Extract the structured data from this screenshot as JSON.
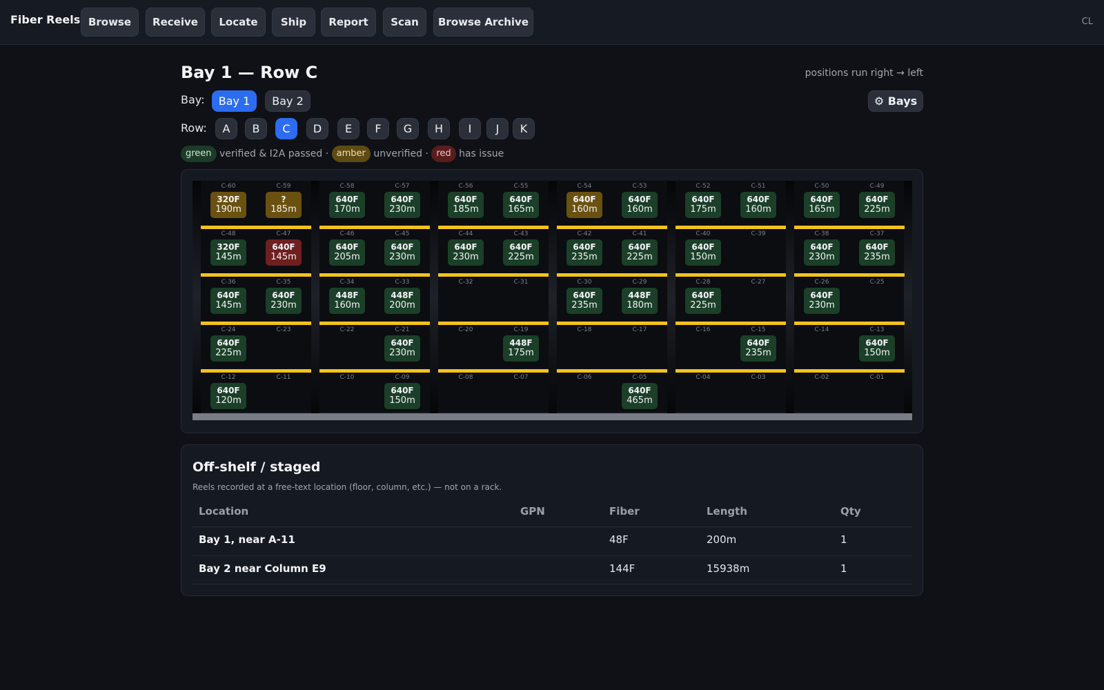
{
  "nav": {
    "brand": "Fiber Reels",
    "buttons": [
      "Browse",
      "Receive",
      "Locate",
      "Ship",
      "Report",
      "Scan",
      "Browse Archive"
    ],
    "user_initials": "CL"
  },
  "header": {
    "title": "Bay 1 — Row C",
    "direction_hint": "positions run right → left",
    "bay_label": "Bay:",
    "bays": [
      "Bay 1",
      "Bay 2"
    ],
    "active_bay": "Bay 1",
    "bays_button": "⚙ Bays",
    "row_label": "Row:",
    "rows": [
      "A",
      "B",
      "C",
      "D",
      "E",
      "F",
      "G",
      "H",
      "I",
      "J",
      "K"
    ],
    "active_row": "C"
  },
  "legend": {
    "green_chip": "green",
    "green_text": "verified & I2A passed ·",
    "amber_chip": "amber",
    "amber_text": "unverified ·",
    "red_chip": "red",
    "red_text": "has issue"
  },
  "colors": {
    "green": "#1b3f28",
    "amber": "#6a5110",
    "red": "#6e1f1f",
    "accent": "#2c6cf0",
    "beam": "#f4c21b"
  },
  "rack": {
    "rows": [
      {
        "slots": [
          {
            "pos": "C-60",
            "reel": {
              "fiber": "320F",
              "length": "190m",
              "status": "amber"
            }
          },
          {
            "pos": "C-59",
            "reel": {
              "fiber": "?",
              "length": "185m",
              "status": "amber"
            }
          },
          {
            "pos": "C-58",
            "reel": {
              "fiber": "640F",
              "length": "170m",
              "status": "green"
            }
          },
          {
            "pos": "C-57",
            "reel": {
              "fiber": "640F",
              "length": "230m",
              "status": "green"
            }
          },
          {
            "pos": "C-56",
            "reel": {
              "fiber": "640F",
              "length": "185m",
              "status": "green"
            }
          },
          {
            "pos": "C-55",
            "reel": {
              "fiber": "640F",
              "length": "165m",
              "status": "green"
            }
          },
          {
            "pos": "C-54",
            "reel": {
              "fiber": "640F",
              "length": "160m",
              "status": "amber"
            }
          },
          {
            "pos": "C-53",
            "reel": {
              "fiber": "640F",
              "length": "160m",
              "status": "green"
            }
          },
          {
            "pos": "C-52",
            "reel": {
              "fiber": "640F",
              "length": "175m",
              "status": "green"
            }
          },
          {
            "pos": "C-51",
            "reel": {
              "fiber": "640F",
              "length": "160m",
              "status": "green"
            }
          },
          {
            "pos": "C-50",
            "reel": {
              "fiber": "640F",
              "length": "165m",
              "status": "green"
            }
          },
          {
            "pos": "C-49",
            "reel": {
              "fiber": "640F",
              "length": "225m",
              "status": "green"
            }
          }
        ]
      },
      {
        "slots": [
          {
            "pos": "C-48",
            "reel": {
              "fiber": "320F",
              "length": "145m",
              "status": "green"
            }
          },
          {
            "pos": "C-47",
            "reel": {
              "fiber": "640F",
              "length": "145m",
              "status": "red"
            }
          },
          {
            "pos": "C-46",
            "reel": {
              "fiber": "640F",
              "length": "205m",
              "status": "green"
            }
          },
          {
            "pos": "C-45",
            "reel": {
              "fiber": "640F",
              "length": "230m",
              "status": "green"
            }
          },
          {
            "pos": "C-44",
            "reel": {
              "fiber": "640F",
              "length": "230m",
              "status": "green"
            }
          },
          {
            "pos": "C-43",
            "reel": {
              "fiber": "640F",
              "length": "225m",
              "status": "green"
            }
          },
          {
            "pos": "C-42",
            "reel": {
              "fiber": "640F",
              "length": "235m",
              "status": "green"
            }
          },
          {
            "pos": "C-41",
            "reel": {
              "fiber": "640F",
              "length": "225m",
              "status": "green"
            }
          },
          {
            "pos": "C-40",
            "reel": {
              "fiber": "640F",
              "length": "150m",
              "status": "green"
            }
          },
          {
            "pos": "C-39",
            "reel": null
          },
          {
            "pos": "C-38",
            "reel": {
              "fiber": "640F",
              "length": "230m",
              "status": "green"
            }
          },
          {
            "pos": "C-37",
            "reel": {
              "fiber": "640F",
              "length": "235m",
              "status": "green"
            }
          }
        ]
      },
      {
        "slots": [
          {
            "pos": "C-36",
            "reel": {
              "fiber": "640F",
              "length": "145m",
              "status": "green"
            }
          },
          {
            "pos": "C-35",
            "reel": {
              "fiber": "640F",
              "length": "230m",
              "status": "green"
            }
          },
          {
            "pos": "C-34",
            "reel": {
              "fiber": "448F",
              "length": "160m",
              "status": "green"
            }
          },
          {
            "pos": "C-33",
            "reel": {
              "fiber": "448F",
              "length": "200m",
              "status": "green"
            }
          },
          {
            "pos": "C-32",
            "reel": null
          },
          {
            "pos": "C-31",
            "reel": null
          },
          {
            "pos": "C-30",
            "reel": {
              "fiber": "640F",
              "length": "235m",
              "status": "green"
            }
          },
          {
            "pos": "C-29",
            "reel": {
              "fiber": "448F",
              "length": "180m",
              "status": "green"
            }
          },
          {
            "pos": "C-28",
            "reel": {
              "fiber": "640F",
              "length": "225m",
              "status": "green"
            }
          },
          {
            "pos": "C-27",
            "reel": null
          },
          {
            "pos": "C-26",
            "reel": {
              "fiber": "640F",
              "length": "230m",
              "status": "green"
            }
          },
          {
            "pos": "C-25",
            "reel": null
          }
        ]
      },
      {
        "slots": [
          {
            "pos": "C-24",
            "reel": {
              "fiber": "640F",
              "length": "225m",
              "status": "green"
            }
          },
          {
            "pos": "C-23",
            "reel": null
          },
          {
            "pos": "C-22",
            "reel": null
          },
          {
            "pos": "C-21",
            "reel": {
              "fiber": "640F",
              "length": "230m",
              "status": "green"
            }
          },
          {
            "pos": "C-20",
            "reel": null
          },
          {
            "pos": "C-19",
            "reel": {
              "fiber": "448F",
              "length": "175m",
              "status": "green"
            }
          },
          {
            "pos": "C-18",
            "reel": null
          },
          {
            "pos": "C-17",
            "reel": null
          },
          {
            "pos": "C-16",
            "reel": null
          },
          {
            "pos": "C-15",
            "reel": {
              "fiber": "640F",
              "length": "235m",
              "status": "green"
            }
          },
          {
            "pos": "C-14",
            "reel": null
          },
          {
            "pos": "C-13",
            "reel": {
              "fiber": "640F",
              "length": "150m",
              "status": "green"
            }
          }
        ]
      },
      {
        "slots": [
          {
            "pos": "C-12",
            "reel": {
              "fiber": "640F",
              "length": "120m",
              "status": "green"
            }
          },
          {
            "pos": "C-11",
            "reel": null
          },
          {
            "pos": "C-10",
            "reel": null
          },
          {
            "pos": "C-09",
            "reel": {
              "fiber": "640F",
              "length": "150m",
              "status": "green"
            }
          },
          {
            "pos": "C-08",
            "reel": null
          },
          {
            "pos": "C-07",
            "reel": null
          },
          {
            "pos": "C-06",
            "reel": null
          },
          {
            "pos": "C-05",
            "reel": {
              "fiber": "640F",
              "length": "465m",
              "status": "green"
            }
          },
          {
            "pos": "C-04",
            "reel": null
          },
          {
            "pos": "C-03",
            "reel": null
          },
          {
            "pos": "C-02",
            "reel": null
          },
          {
            "pos": "C-01",
            "reel": null
          }
        ]
      }
    ]
  },
  "offshelf": {
    "title": "Off-shelf / staged",
    "subtitle": "Reels recorded at a free-text location (floor, column, etc.) — not on a rack.",
    "columns": [
      "Location",
      "GPN",
      "Fiber",
      "Length",
      "Qty"
    ],
    "rows": [
      {
        "location": "Bay 1, near A-11",
        "gpn": "",
        "fiber": "48F",
        "length": "200m",
        "qty": "1"
      },
      {
        "location": "Bay 2 near Column E9",
        "gpn": "",
        "fiber": "144F",
        "length": "15938m",
        "qty": "1"
      }
    ]
  }
}
